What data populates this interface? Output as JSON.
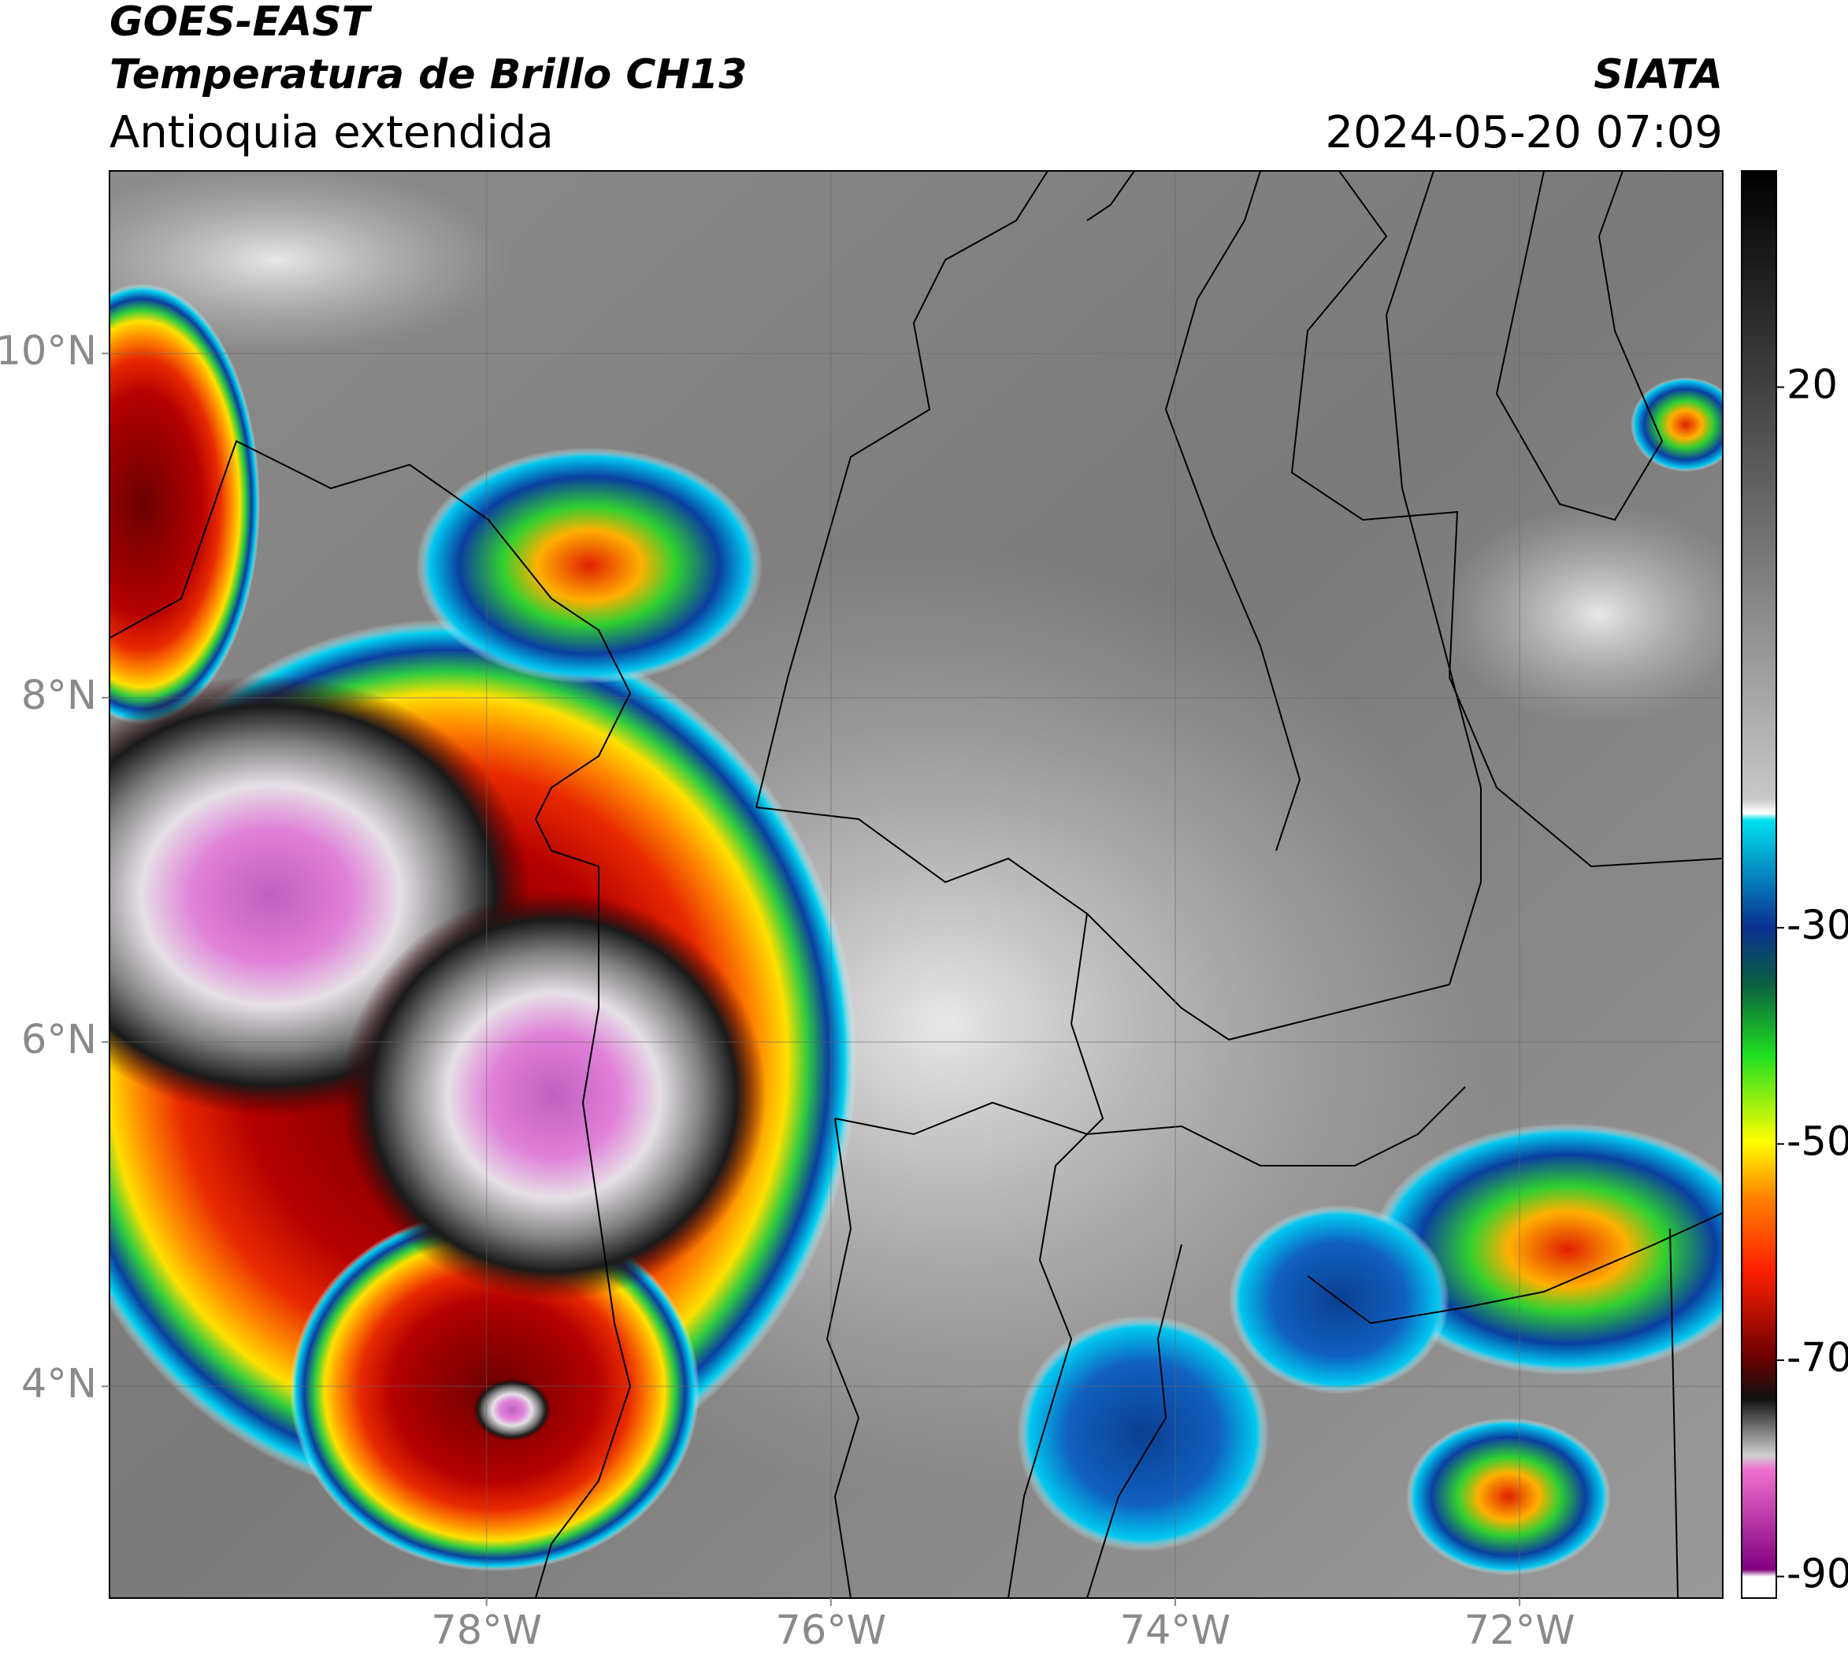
{
  "header": {
    "title": "GOES-EAST",
    "subtitle": "Temperatura de Brillo CH13",
    "region": "Antioquia extendida",
    "source": "SIATA",
    "datetime": "2024-05-20 07:09"
  },
  "map": {
    "xlim": [
      -80.19,
      -70.82
    ],
    "ylim": [
      2.77,
      11.06
    ],
    "xticks": [
      {
        "value": -78,
        "label": "78°W"
      },
      {
        "value": -76,
        "label": "76°W"
      },
      {
        "value": -74,
        "label": "74°W"
      },
      {
        "value": -72,
        "label": "72°W"
      }
    ],
    "yticks": [
      {
        "value": 10,
        "label": "10°N"
      },
      {
        "value": 8,
        "label": "8°N"
      },
      {
        "value": 6,
        "label": "6°N"
      },
      {
        "value": 4,
        "label": "4°N"
      }
    ]
  },
  "colorbar": {
    "lim": [
      -92,
      40
    ],
    "ticks": [
      20,
      -30,
      -50,
      -70,
      -90
    ]
  }
}
